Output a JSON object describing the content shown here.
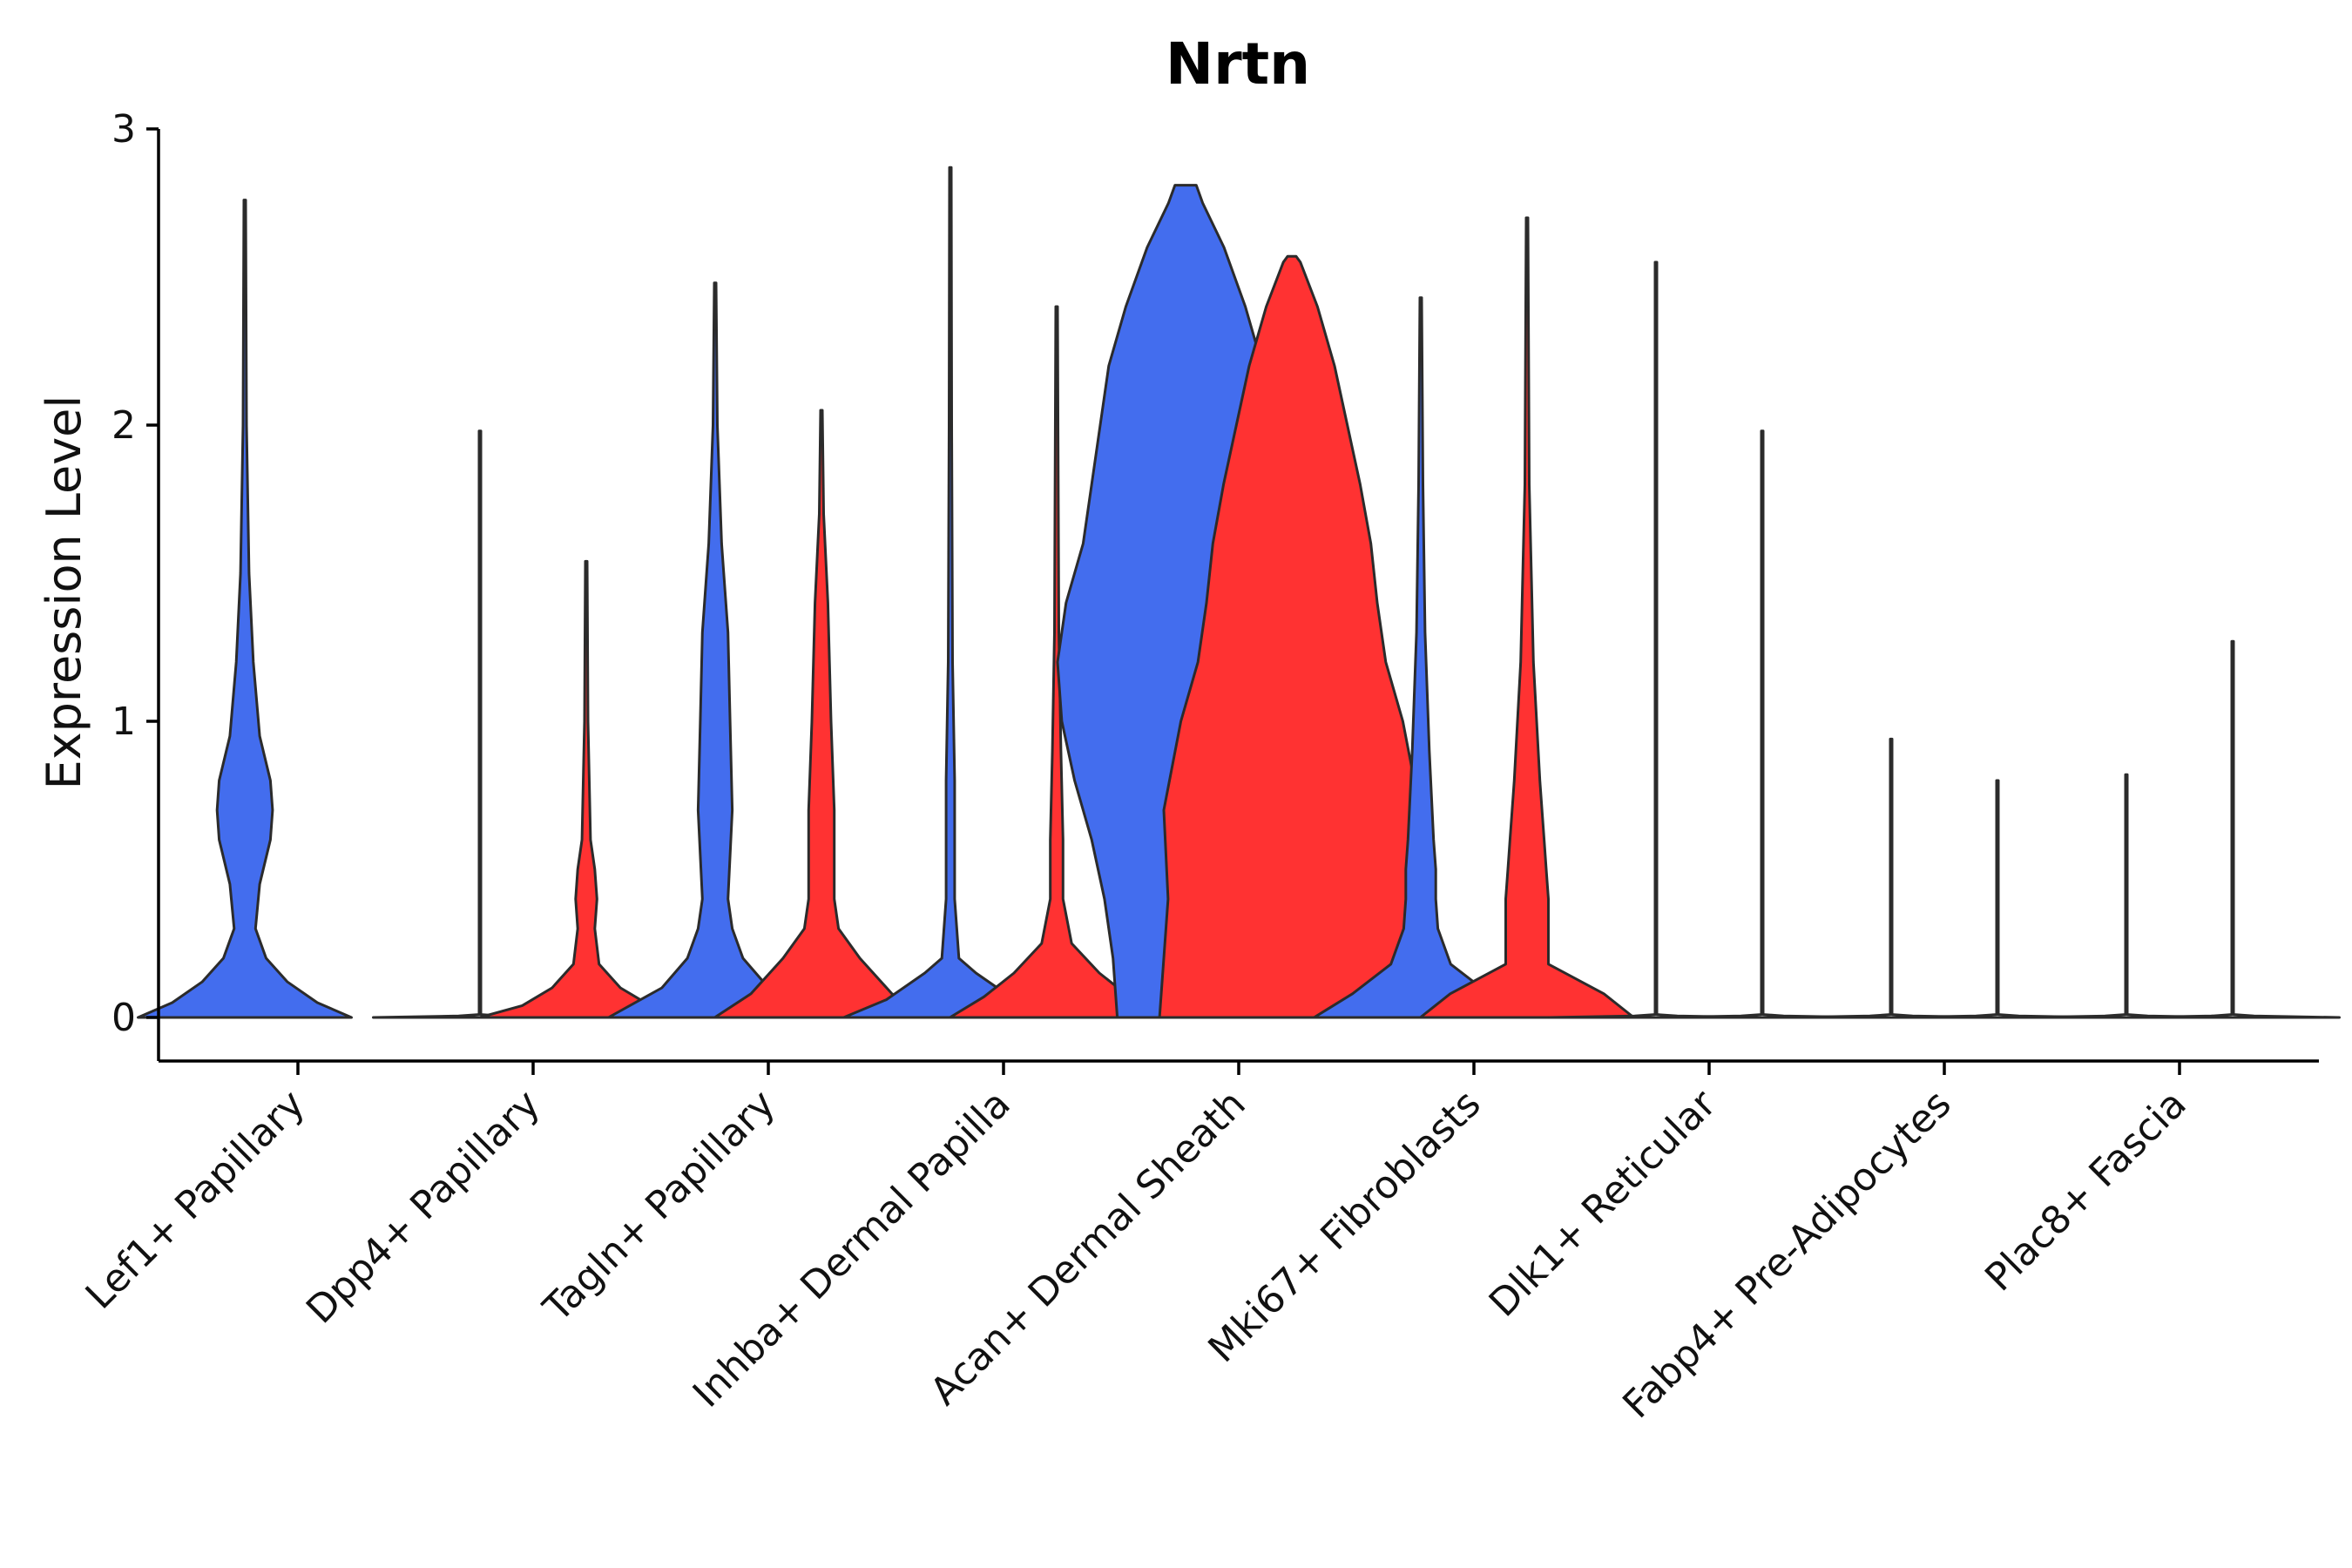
{
  "chart_data": {
    "type": "violin",
    "title": "Nrtn",
    "xlabel": "",
    "ylabel": "Expression Level",
    "ylim": [
      -0.14,
      3.0
    ],
    "yticks": [
      0,
      1,
      2,
      3
    ],
    "colors": {
      "blue": "#436DEE",
      "red": "#FF3232"
    },
    "categories": [
      "Lef1+ Papillary",
      "Dpp4+ Papillary",
      "Tagln+ Papillary",
      "Inhba+ Dermal Papilla",
      "Acan+ Dermal Sheath",
      "Mki67+ Fibroblasts",
      "Dlk1+ Reticular",
      "Fabp4+ Pre-Adipocytes",
      "Plac8+ Fascia"
    ],
    "violins": [
      {
        "category_index": 0,
        "side": "left",
        "color": "blue",
        "max": 2.76,
        "profile": [
          [
            0,
            0.5
          ],
          [
            0.05,
            0.34
          ],
          [
            0.12,
            0.2
          ],
          [
            0.2,
            0.1
          ],
          [
            0.3,
            0.05
          ],
          [
            0.45,
            0.07
          ],
          [
            0.6,
            0.12
          ],
          [
            0.7,
            0.13
          ],
          [
            0.8,
            0.12
          ],
          [
            0.95,
            0.07
          ],
          [
            1.2,
            0.04
          ],
          [
            1.5,
            0.02
          ],
          [
            2.0,
            0.008
          ],
          [
            2.76,
            0.004
          ]
        ]
      },
      {
        "category_index": 1,
        "side": "left",
        "color": "none",
        "max": 1.98,
        "profile": [
          [
            0,
            0.5
          ],
          [
            0.005,
            0.1
          ],
          [
            0.01,
            0.004
          ],
          [
            1.98,
            0.004
          ]
        ]
      },
      {
        "category_index": 1,
        "side": "right",
        "color": "red",
        "max": 1.54,
        "profile": [
          [
            0,
            0.5
          ],
          [
            0.04,
            0.3
          ],
          [
            0.1,
            0.16
          ],
          [
            0.18,
            0.06
          ],
          [
            0.3,
            0.04
          ],
          [
            0.4,
            0.05
          ],
          [
            0.5,
            0.04
          ],
          [
            0.6,
            0.02
          ],
          [
            1.0,
            0.008
          ],
          [
            1.54,
            0.004
          ]
        ]
      },
      {
        "category_index": 2,
        "side": "left",
        "color": "blue",
        "max": 2.48,
        "profile": [
          [
            0,
            0.5
          ],
          [
            0.1,
            0.25
          ],
          [
            0.2,
            0.13
          ],
          [
            0.3,
            0.08
          ],
          [
            0.4,
            0.06
          ],
          [
            0.7,
            0.08
          ],
          [
            1.0,
            0.07
          ],
          [
            1.3,
            0.06
          ],
          [
            1.6,
            0.03
          ],
          [
            2.0,
            0.01
          ],
          [
            2.48,
            0.004
          ]
        ]
      },
      {
        "category_index": 2,
        "side": "right",
        "color": "red",
        "max": 2.05,
        "profile": [
          [
            0,
            0.5
          ],
          [
            0.08,
            0.33
          ],
          [
            0.2,
            0.18
          ],
          [
            0.3,
            0.08
          ],
          [
            0.4,
            0.06
          ],
          [
            0.55,
            0.06
          ],
          [
            0.7,
            0.06
          ],
          [
            1.0,
            0.045
          ],
          [
            1.4,
            0.03
          ],
          [
            1.7,
            0.01
          ],
          [
            2.05,
            0.004
          ]
        ]
      },
      {
        "category_index": 3,
        "side": "left",
        "color": "blue",
        "max": 2.87,
        "profile": [
          [
            0,
            0.5
          ],
          [
            0.06,
            0.3
          ],
          [
            0.15,
            0.12
          ],
          [
            0.2,
            0.04
          ],
          [
            0.4,
            0.02
          ],
          [
            0.8,
            0.02
          ],
          [
            1.2,
            0.01
          ],
          [
            2.0,
            0.006
          ],
          [
            2.87,
            0.004
          ]
        ]
      },
      {
        "category_index": 3,
        "side": "right",
        "color": "red",
        "max": 2.4,
        "profile": [
          [
            0,
            0.5
          ],
          [
            0.07,
            0.34
          ],
          [
            0.15,
            0.2
          ],
          [
            0.25,
            0.07
          ],
          [
            0.4,
            0.03
          ],
          [
            0.6,
            0.03
          ],
          [
            0.9,
            0.02
          ],
          [
            1.3,
            0.01
          ],
          [
            2.4,
            0.004
          ]
        ]
      },
      {
        "category_index": 4,
        "side": "left",
        "color": "blue",
        "max": 2.81,
        "profile": [
          [
            0,
            0.32
          ],
          [
            0.2,
            0.34
          ],
          [
            0.4,
            0.38
          ],
          [
            0.6,
            0.44
          ],
          [
            0.8,
            0.52
          ],
          [
            1.0,
            0.58
          ],
          [
            1.2,
            0.6
          ],
          [
            1.4,
            0.56
          ],
          [
            1.6,
            0.48
          ],
          [
            1.8,
            0.44
          ],
          [
            2.0,
            0.4
          ],
          [
            2.2,
            0.36
          ],
          [
            2.4,
            0.28
          ],
          [
            2.6,
            0.18
          ],
          [
            2.75,
            0.08
          ],
          [
            2.81,
            0.05
          ]
        ]
      },
      {
        "category_index": 4,
        "side": "right",
        "color": "red",
        "max": 2.57,
        "profile": [
          [
            0,
            0.62
          ],
          [
            0.2,
            0.6
          ],
          [
            0.4,
            0.58
          ],
          [
            0.7,
            0.6
          ],
          [
            1.0,
            0.52
          ],
          [
            1.2,
            0.44
          ],
          [
            1.4,
            0.4
          ],
          [
            1.6,
            0.37
          ],
          [
            1.8,
            0.32
          ],
          [
            2.0,
            0.26
          ],
          [
            2.2,
            0.2
          ],
          [
            2.4,
            0.12
          ],
          [
            2.55,
            0.04
          ],
          [
            2.57,
            0.02
          ]
        ]
      },
      {
        "category_index": 5,
        "side": "left",
        "color": "blue",
        "max": 2.43,
        "profile": [
          [
            0,
            0.5
          ],
          [
            0.08,
            0.32
          ],
          [
            0.18,
            0.14
          ],
          [
            0.3,
            0.08
          ],
          [
            0.4,
            0.07
          ],
          [
            0.5,
            0.07
          ],
          [
            0.6,
            0.06
          ],
          [
            0.9,
            0.04
          ],
          [
            1.3,
            0.02
          ],
          [
            1.8,
            0.01
          ],
          [
            2.43,
            0.004
          ]
        ]
      },
      {
        "category_index": 5,
        "side": "right",
        "color": "red",
        "max": 2.7,
        "profile": [
          [
            0,
            0.5
          ],
          [
            0.08,
            0.36
          ],
          [
            0.18,
            0.1
          ],
          [
            0.3,
            0.1
          ],
          [
            0.4,
            0.1
          ],
          [
            0.5,
            0.09
          ],
          [
            0.6,
            0.08
          ],
          [
            0.8,
            0.06
          ],
          [
            1.2,
            0.03
          ],
          [
            1.8,
            0.01
          ],
          [
            2.7,
            0.004
          ]
        ]
      },
      {
        "category_index": 6,
        "side": "left",
        "color": "none",
        "max": 2.55,
        "profile": [
          [
            0,
            0.5
          ],
          [
            0.005,
            0.1
          ],
          [
            0.01,
            0.004
          ],
          [
            2.55,
            0.004
          ]
        ]
      },
      {
        "category_index": 6,
        "side": "right",
        "color": "none",
        "max": 1.98,
        "profile": [
          [
            0,
            0.5
          ],
          [
            0.005,
            0.1
          ],
          [
            0.01,
            0.004
          ],
          [
            1.98,
            0.004
          ]
        ]
      },
      {
        "category_index": 7,
        "side": "left",
        "color": "none",
        "max": 0.94,
        "profile": [
          [
            0,
            0.5
          ],
          [
            0.005,
            0.1
          ],
          [
            0.01,
            0.004
          ],
          [
            0.94,
            0.004
          ]
        ]
      },
      {
        "category_index": 7,
        "side": "right",
        "color": "none",
        "max": 0.8,
        "profile": [
          [
            0,
            0.5
          ],
          [
            0.005,
            0.1
          ],
          [
            0.01,
            0.004
          ],
          [
            0.8,
            0.004
          ]
        ]
      },
      {
        "category_index": 8,
        "side": "left",
        "color": "none",
        "max": 0.82,
        "profile": [
          [
            0,
            0.5
          ],
          [
            0.005,
            0.1
          ],
          [
            0.01,
            0.004
          ],
          [
            0.82,
            0.004
          ]
        ]
      },
      {
        "category_index": 8,
        "side": "right",
        "color": "none",
        "max": 1.27,
        "profile": [
          [
            0,
            0.5
          ],
          [
            0.005,
            0.1
          ],
          [
            0.01,
            0.004
          ],
          [
            1.27,
            0.004
          ]
        ]
      }
    ]
  }
}
